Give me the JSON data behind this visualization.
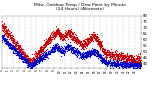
{
  "title": "Milw. Outdoor Temp / Dew Point by Minute\n(24 Hours) (Alternate)",
  "title_fontsize": 3.2,
  "background_color": "#ffffff",
  "grid_color": "#999999",
  "temp_color": "#cc0000",
  "dew_color": "#0000cc",
  "ylim": [
    36,
    80
  ],
  "xlim": [
    0,
    1440
  ],
  "yticks": [
    40,
    45,
    50,
    55,
    60,
    65,
    70,
    75,
    80
  ],
  "marker_size": 0.8,
  "seed": 7
}
